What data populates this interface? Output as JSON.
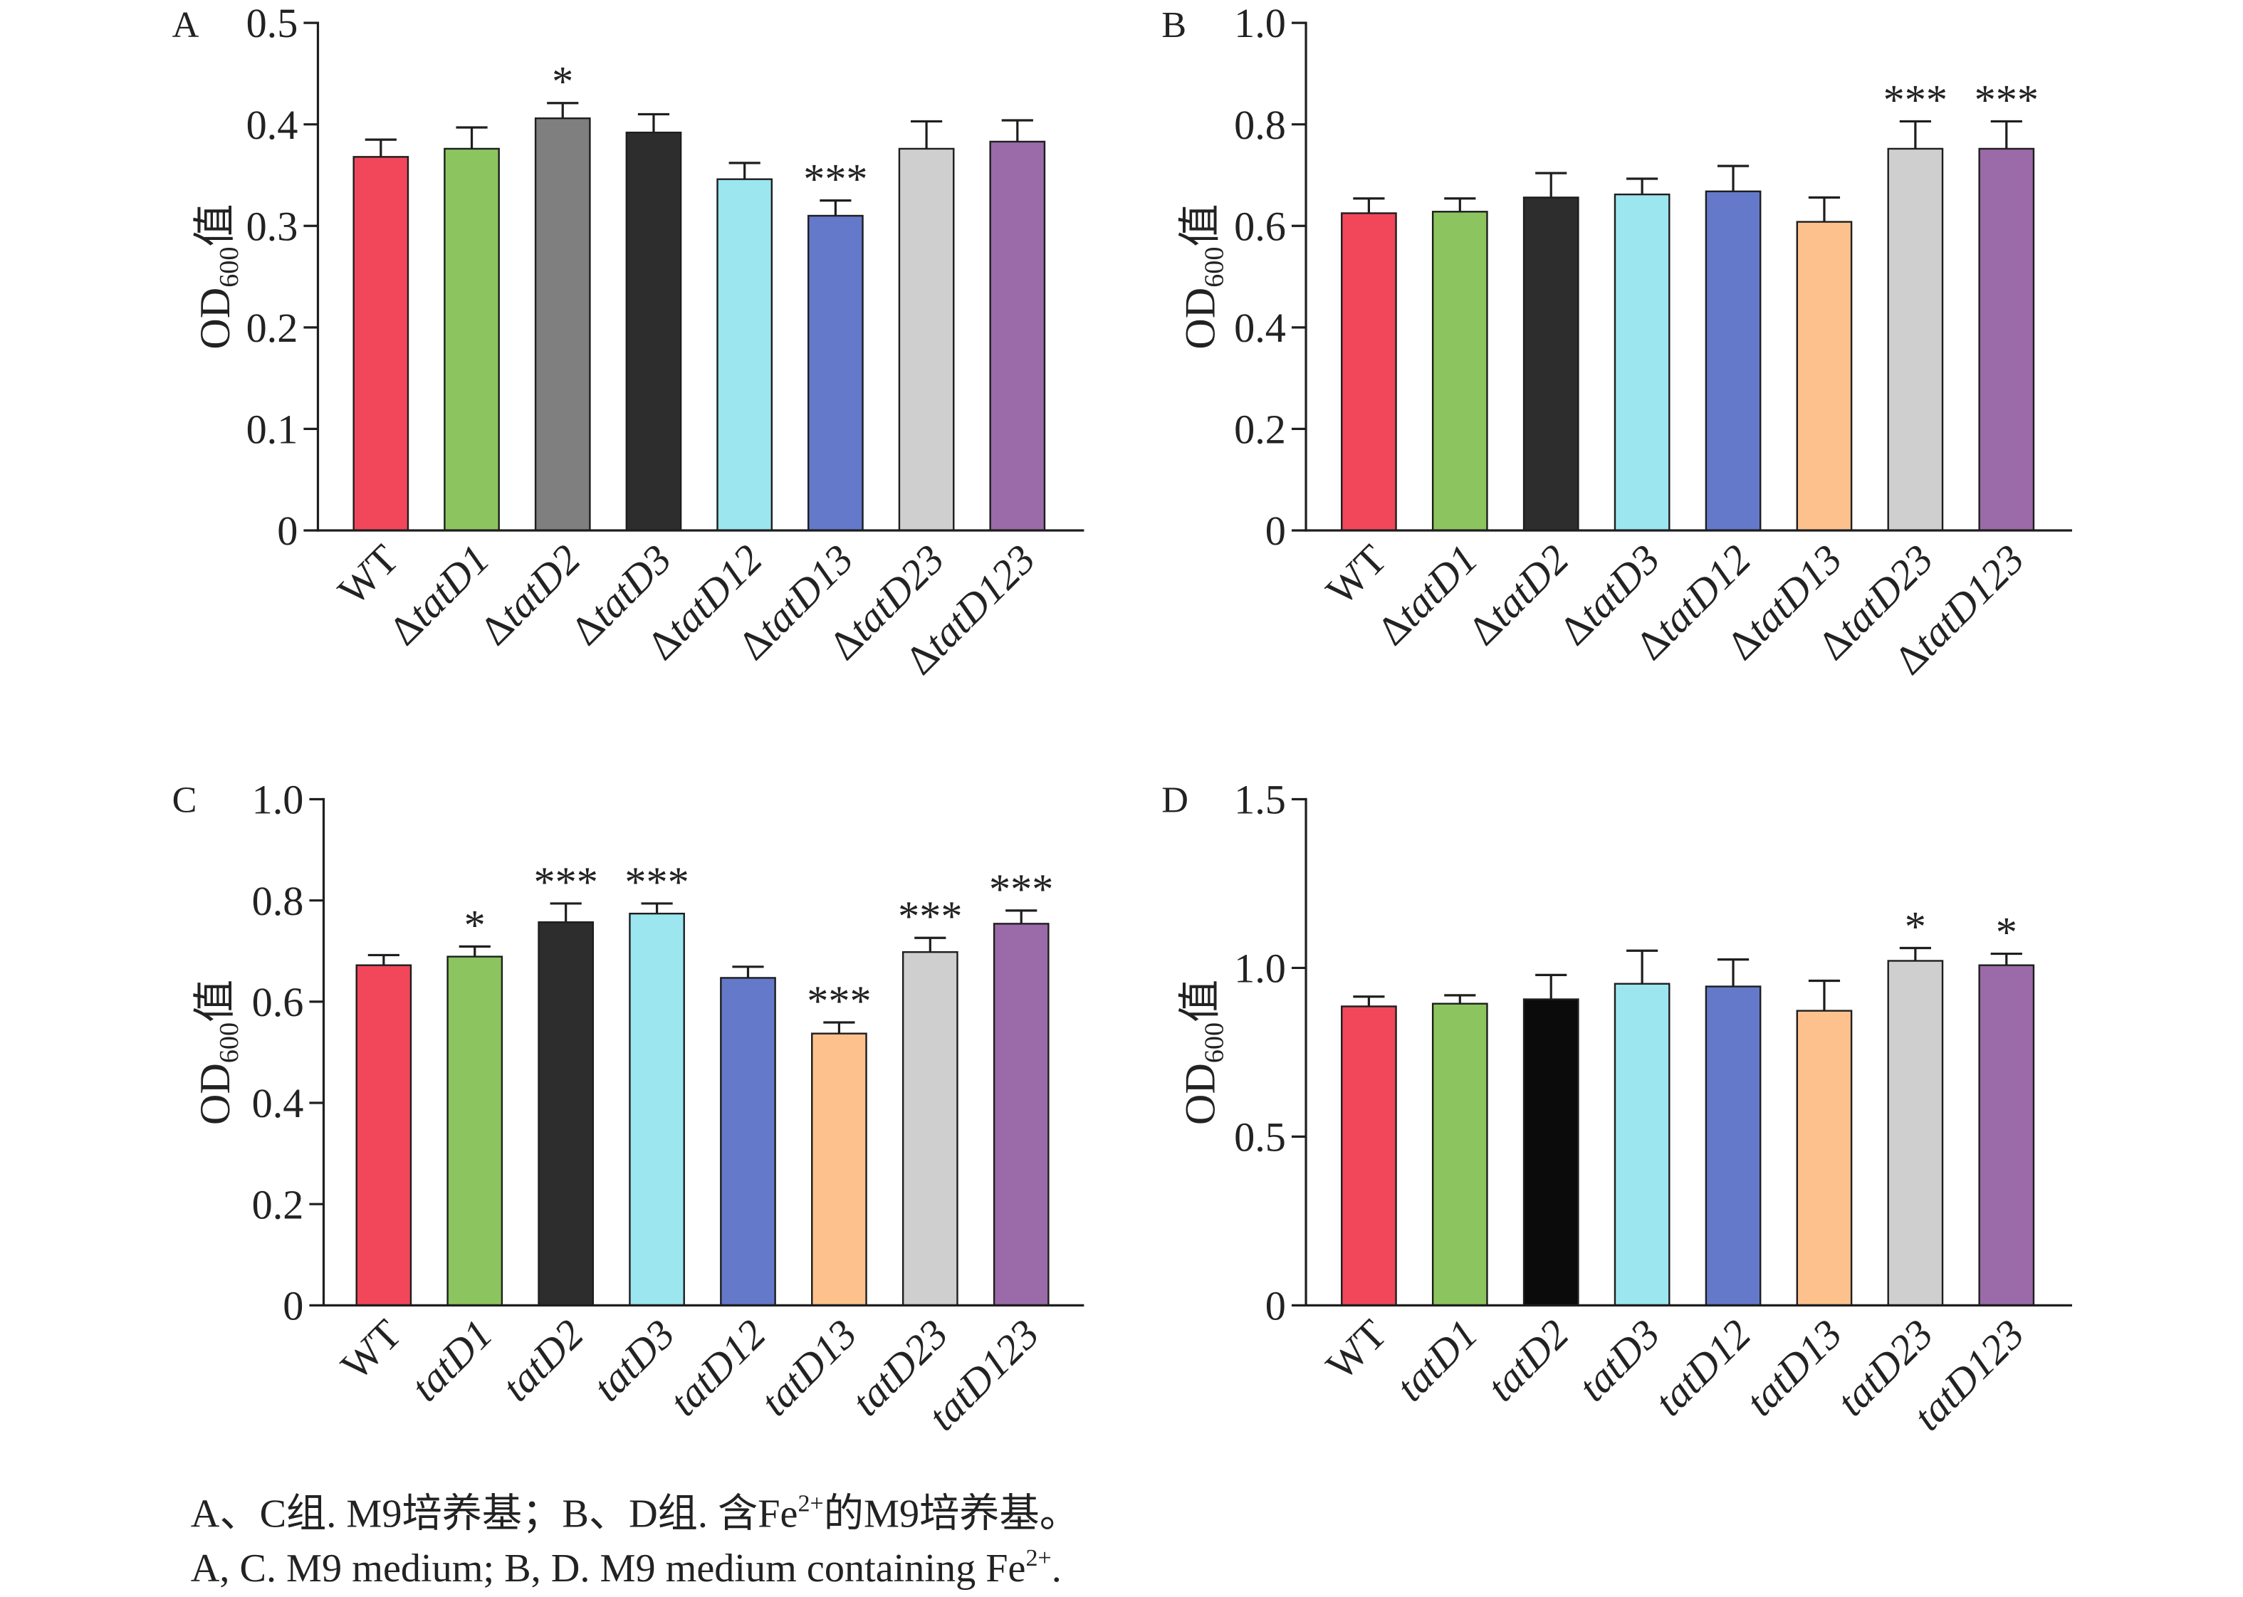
{
  "caption": {
    "chinese": [
      "A、C组. M9培养基；B、D组. 含Fe",
      "2+",
      "的M9培养基。"
    ],
    "english": [
      "A, C. M9 medium; B, D. M9 medium containing Fe",
      "2+",
      "."
    ]
  },
  "chart_data": [
    {
      "panel_label": "A",
      "type": "bar",
      "categories": [
        "WT",
        "ΔtatD1",
        "ΔtatD2",
        "ΔtatD3",
        "ΔtatD12",
        "ΔtatD13",
        "ΔtatD23",
        "ΔtatD123"
      ],
      "values": [
        0.368,
        0.376,
        0.406,
        0.392,
        0.346,
        0.31,
        0.376,
        0.383
      ],
      "error_upper": [
        0.017,
        0.021,
        0.015,
        0.018,
        0.016,
        0.015,
        0.027,
        0.021
      ],
      "significance": [
        "",
        "",
        "*",
        "",
        "",
        "***",
        "",
        ""
      ],
      "colors": [
        "#f2475a",
        "#8cc560",
        "#7f7f7f",
        "#2d2d2d",
        "#9ce6f0",
        "#6479c9",
        "#cfcfcf",
        "#9b6aa8"
      ],
      "ylabel": {
        "text": "OD",
        "subscript": "600",
        "suffix": "值"
      },
      "ylim": [
        0,
        0.5
      ],
      "yticks": [
        0,
        0.1,
        0.2,
        0.3,
        0.4,
        0.5
      ],
      "ytick_labels": [
        "0",
        "0.1",
        "0.2",
        "0.3",
        "0.4",
        "0.5"
      ],
      "grid": false
    },
    {
      "panel_label": "B",
      "type": "bar",
      "categories": [
        "WT",
        "ΔtatD1",
        "ΔtatD2",
        "ΔtatD3",
        "ΔtatD12",
        "ΔtatD13",
        "ΔtatD23",
        "ΔtatD123"
      ],
      "values": [
        0.625,
        0.628,
        0.656,
        0.662,
        0.668,
        0.608,
        0.752,
        0.752
      ],
      "error_upper": [
        0.029,
        0.026,
        0.048,
        0.031,
        0.05,
        0.048,
        0.054,
        0.054
      ],
      "significance": [
        "",
        "",
        "",
        "",
        "",
        "",
        "***",
        "***"
      ],
      "colors": [
        "#f2475a",
        "#8cc560",
        "#2d2d2d",
        "#9ce6f0",
        "#6479c9",
        "#fdc18e",
        "#cfcfcf",
        "#9b6aa8"
      ],
      "ylabel": {
        "text": "OD",
        "subscript": "600",
        "suffix": "值"
      },
      "ylim": [
        0,
        1.0
      ],
      "yticks": [
        0,
        0.2,
        0.4,
        0.6,
        0.8,
        1.0
      ],
      "ytick_labels": [
        "0",
        "0.2",
        "0.4",
        "0.6",
        "0.8",
        "1.0"
      ],
      "grid": false
    },
    {
      "panel_label": "C",
      "type": "bar",
      "categories": [
        "WT",
        "tatD1",
        "tatD2",
        "tatD3",
        "tatD12",
        "tatD13",
        "tatD23",
        "tatD123"
      ],
      "values": [
        0.672,
        0.689,
        0.757,
        0.774,
        0.647,
        0.537,
        0.698,
        0.754
      ],
      "error_upper": [
        0.02,
        0.02,
        0.037,
        0.02,
        0.022,
        0.022,
        0.028,
        0.026
      ],
      "significance": [
        "",
        "*",
        "***",
        "***",
        "",
        "***",
        "***",
        "***"
      ],
      "colors": [
        "#f2475a",
        "#8cc560",
        "#2d2d2d",
        "#9ce6f0",
        "#6479c9",
        "#fdc18e",
        "#cfcfcf",
        "#9b6aa8"
      ],
      "ylabel": {
        "text": "OD",
        "subscript": "600",
        "suffix": "值"
      },
      "ylim": [
        0,
        1.0
      ],
      "yticks": [
        0,
        0.2,
        0.4,
        0.6,
        0.8,
        1.0
      ],
      "ytick_labels": [
        "0",
        "0.2",
        "0.4",
        "0.6",
        "0.8",
        "1.0"
      ],
      "grid": false
    },
    {
      "panel_label": "D",
      "type": "bar",
      "categories": [
        "WT",
        "tatD1",
        "tatD2",
        "tatD3",
        "tatD12",
        "tatD13",
        "tatD23",
        "tatD123"
      ],
      "values": [
        0.886,
        0.894,
        0.907,
        0.953,
        0.945,
        0.873,
        1.021,
        1.008
      ],
      "error_upper": [
        0.029,
        0.025,
        0.072,
        0.098,
        0.08,
        0.089,
        0.038,
        0.034
      ],
      "significance": [
        "",
        "",
        "",
        "",
        "",
        "",
        "*",
        "*"
      ],
      "colors": [
        "#f2475a",
        "#8cc560",
        "#0b0b0b",
        "#9ce6f0",
        "#6479c9",
        "#fdc18e",
        "#cfcfcf",
        "#9b6aa8"
      ],
      "ylabel": {
        "text": "OD",
        "subscript": "600",
        "suffix": "值"
      },
      "ylim": [
        0,
        1.5
      ],
      "yticks": [
        0,
        0.5,
        1.0,
        1.5
      ],
      "ytick_labels": [
        "0",
        "0.5",
        "1.0",
        "1.5"
      ],
      "grid": false
    }
  ]
}
